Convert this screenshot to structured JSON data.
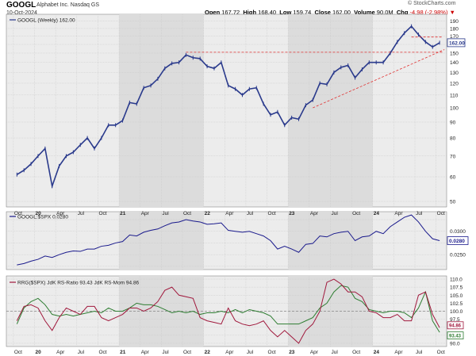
{
  "header": {
    "symbol": "GOOGL",
    "company": "Alphabet Inc.  Nasdaq GS",
    "date": "10-Oct-2024",
    "brand": "© StockCharts.com",
    "open_label": "Open",
    "open": "167.72",
    "high_label": "High",
    "high": "168.40",
    "low_label": "Low",
    "low": "159.74",
    "close_label": "Close",
    "close": "162.00",
    "volume_label": "Volume",
    "volume": "90.0M",
    "chg_label": "Chg",
    "chg": "-4.98 (-2.98%)",
    "chg_arrow": "▼"
  },
  "colors": {
    "price": "#2a3a8c",
    "ratio": "#1a1a8c",
    "rs_ratio": "#2e7d32",
    "rs_momentum": "#a0183c",
    "resistance": "#e03030",
    "background": "#ececec",
    "shade": "#dcdcdc"
  },
  "x_axis": {
    "labels": [
      "Oct",
      "20",
      "Apr",
      "Jul",
      "Oct",
      "21",
      "Apr",
      "Jul",
      "Oct",
      "22",
      "Apr",
      "Jul",
      "Oct",
      "23",
      "Apr",
      "Jul",
      "Oct",
      "24",
      "Apr",
      "Jul",
      "Oct"
    ],
    "bold": [
      "20",
      "21",
      "22",
      "23",
      "24"
    ]
  },
  "chart_data": [
    {
      "type": "line",
      "title": "GOOGL (Weekly) 162.00",
      "series": [
        {
          "name": "GOOGL (Weekly) 162.00"
        }
      ],
      "scale": "log",
      "ylim": [
        48,
        200
      ],
      "yticks": [
        50,
        60,
        70,
        80,
        90,
        100,
        110,
        120,
        130,
        140,
        150,
        160,
        170,
        180,
        190
      ],
      "last_value_label": "162.00",
      "x": [
        "2019-10",
        "2019-11",
        "2019-12",
        "2020-01",
        "2020-02",
        "2020-03",
        "2020-04",
        "2020-05",
        "2020-06",
        "2020-07",
        "2020-08",
        "2020-09",
        "2020-10",
        "2020-11",
        "2020-12",
        "2021-01",
        "2021-02",
        "2021-03",
        "2021-04",
        "2021-05",
        "2021-06",
        "2021-07",
        "2021-08",
        "2021-09",
        "2021-10",
        "2021-11",
        "2021-12",
        "2022-01",
        "2022-02",
        "2022-03",
        "2022-04",
        "2022-05",
        "2022-06",
        "2022-07",
        "2022-08",
        "2022-09",
        "2022-10",
        "2022-11",
        "2022-12",
        "2023-01",
        "2023-02",
        "2023-03",
        "2023-04",
        "2023-05",
        "2023-06",
        "2023-07",
        "2023-08",
        "2023-09",
        "2023-10",
        "2023-11",
        "2023-12",
        "2024-01",
        "2024-02",
        "2024-03",
        "2024-04",
        "2024-05",
        "2024-06",
        "2024-07",
        "2024-08",
        "2024-09",
        "2024-10"
      ],
      "close": [
        61,
        63,
        66,
        70,
        74,
        56,
        65,
        70,
        72,
        76,
        80,
        74,
        80,
        88,
        88,
        91,
        104,
        103,
        116,
        118,
        124,
        134,
        139,
        140,
        148,
        145,
        144,
        136,
        134,
        140,
        118,
        115,
        110,
        115,
        116,
        103,
        95,
        97,
        88,
        93,
        92,
        102,
        106,
        120,
        119,
        130,
        135,
        137,
        125,
        133,
        140,
        140,
        140,
        150,
        163,
        174,
        183,
        172,
        163,
        157,
        162
      ],
      "resistance": [
        {
          "level": 151,
          "from": "2021-10",
          "to": "2024-10"
        },
        {
          "level": 169,
          "from": "2024-06",
          "to": "2024-10"
        }
      ],
      "trendline": {
        "from": {
          "x": "2023-04",
          "y": 100
        },
        "to": {
          "x": "2024-10",
          "y": 154
        }
      }
    },
    {
      "type": "line",
      "title": "GOOGL:$SPX 0.0280",
      "series": [
        {
          "name": "GOOGL:$SPX 0.0280"
        }
      ],
      "ylim": [
        0.0218,
        0.0342
      ],
      "yticks": [
        0.0225,
        0.025,
        0.0275,
        0.03,
        0.0325
      ],
      "ytick_labels": [
        "",
        "0.0250",
        "",
        "0.0300",
        ""
      ],
      "last_value_label": "0.0280",
      "values": [
        0.0228,
        0.0231,
        0.0236,
        0.024,
        0.0247,
        0.0244,
        0.025,
        0.0255,
        0.0258,
        0.0257,
        0.0262,
        0.0262,
        0.0268,
        0.027,
        0.0275,
        0.0278,
        0.0292,
        0.029,
        0.0298,
        0.0302,
        0.0305,
        0.0312,
        0.0318,
        0.032,
        0.0325,
        0.0322,
        0.032,
        0.0315,
        0.0316,
        0.0318,
        0.0302,
        0.03,
        0.0298,
        0.03,
        0.0295,
        0.029,
        0.028,
        0.0262,
        0.0268,
        0.0262,
        0.0255,
        0.0272,
        0.0274,
        0.029,
        0.0288,
        0.0295,
        0.0298,
        0.03,
        0.028,
        0.0288,
        0.029,
        0.03,
        0.0295,
        0.031,
        0.032,
        0.033,
        0.0335,
        0.032,
        0.03,
        0.0284,
        0.028
      ]
    },
    {
      "type": "line",
      "title": "RRG($SPX) JdK RS-Ratio 93.43 JdK RS-Mom 94.86",
      "ylim": [
        89,
        111
      ],
      "yticks": [
        90,
        92.5,
        95,
        97.5,
        100,
        102.5,
        105,
        107.5,
        110
      ],
      "ytick_labels": [
        "90.0",
        "",
        "",
        "97.5",
        "100.0",
        "102.5",
        "105.0",
        "107.5",
        "110.0"
      ],
      "reference_line": 100,
      "last_value_labels": [
        "94.86",
        "93.43"
      ],
      "series": [
        {
          "name": "JdK RS-Ratio",
          "values": [
            96,
            101,
            103,
            104,
            102,
            99,
            98.5,
            99,
            98.5,
            99,
            99.5,
            100,
            99.5,
            101,
            100,
            100,
            101,
            102.5,
            102,
            102,
            101.5,
            100.5,
            99.5,
            100,
            99.5,
            100,
            99,
            99.5,
            99.5,
            100,
            99.5,
            100.5,
            99.5,
            100.5,
            100,
            99.5,
            98.5,
            96,
            96,
            96,
            96,
            97,
            98,
            101,
            102.5,
            106,
            108,
            107.5,
            104,
            103,
            100.5,
            100,
            99.5,
            100,
            100,
            99.5,
            98,
            101,
            106,
            97,
            93.43
          ]
        },
        {
          "name": "JdK RS-Mom",
          "values": [
            97,
            101.5,
            102,
            101,
            97,
            94,
            98,
            101,
            100,
            99,
            101.5,
            101.5,
            98,
            97,
            98,
            99,
            101,
            101,
            100,
            101,
            103,
            106.5,
            107.5,
            105,
            104.5,
            104,
            98,
            97,
            96.5,
            96,
            101,
            97,
            96,
            95.5,
            96,
            97,
            94,
            92,
            94,
            92,
            90,
            94,
            96,
            100,
            109,
            110,
            108.5,
            106,
            106,
            104.5,
            100,
            99.5,
            98,
            98,
            99,
            97,
            97,
            105,
            106,
            99,
            94.86
          ]
        }
      ]
    }
  ]
}
